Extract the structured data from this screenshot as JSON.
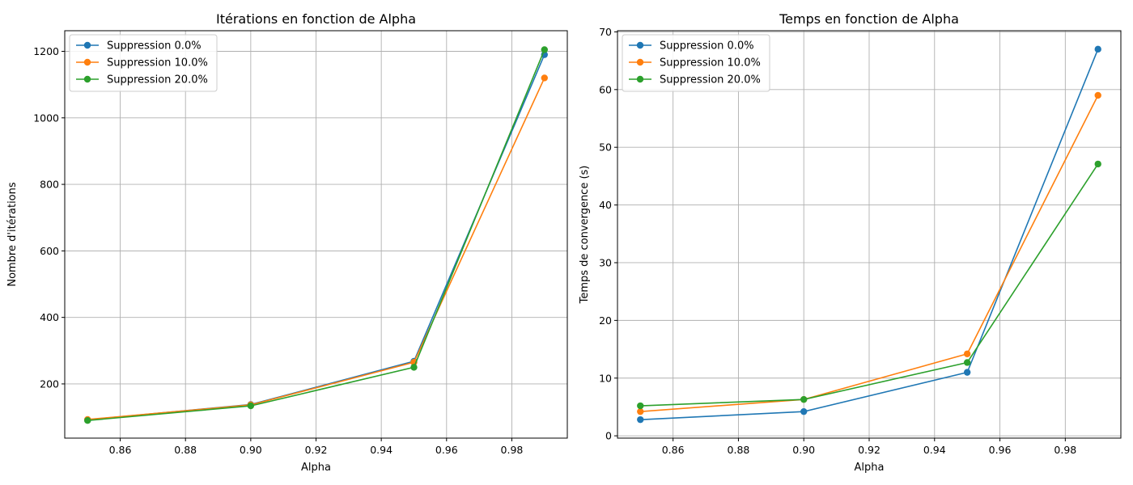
{
  "chart_data": [
    {
      "type": "line",
      "title": "Itérations en fonction de Alpha",
      "xlabel": "Alpha",
      "ylabel": "Nombre d'itérations",
      "x": [
        0.85,
        0.9,
        0.95,
        0.99
      ],
      "xlim": [
        0.843,
        0.997
      ],
      "ylim": [
        37,
        1262
      ],
      "xticks": [
        0.86,
        0.88,
        0.9,
        0.92,
        0.94,
        0.96,
        0.98
      ],
      "xtick_labels": [
        "0.86",
        "0.88",
        "0.90",
        "0.92",
        "0.94",
        "0.96",
        "0.98"
      ],
      "yticks": [
        200,
        400,
        600,
        800,
        1000,
        1200
      ],
      "ytick_labels": [
        "200",
        "400",
        "600",
        "800",
        "1000",
        "1200"
      ],
      "grid": true,
      "legend": "upper left",
      "series": [
        {
          "name": "Suppression 0.0%",
          "color": "#1f77b4",
          "values": [
            92,
            138,
            268,
            1190
          ]
        },
        {
          "name": "Suppression 10.0%",
          "color": "#ff7f0e",
          "values": [
            93,
            137,
            265,
            1120
          ]
        },
        {
          "name": "Suppression 20.0%",
          "color": "#2ca02c",
          "values": [
            90,
            134,
            250,
            1205
          ]
        }
      ]
    },
    {
      "type": "line",
      "title": "Temps en fonction de Alpha",
      "xlabel": "Alpha",
      "ylabel": "Temps de convergence (s)",
      "x": [
        0.85,
        0.9,
        0.95,
        0.99
      ],
      "xlim": [
        0.843,
        0.997
      ],
      "ylim": [
        -0.4,
        70.2
      ],
      "xticks": [
        0.86,
        0.88,
        0.9,
        0.92,
        0.94,
        0.96,
        0.98
      ],
      "xtick_labels": [
        "0.86",
        "0.88",
        "0.90",
        "0.92",
        "0.94",
        "0.96",
        "0.98"
      ],
      "yticks": [
        0,
        10,
        20,
        30,
        40,
        50,
        60,
        70
      ],
      "ytick_labels": [
        "0",
        "10",
        "20",
        "30",
        "40",
        "50",
        "60",
        "70"
      ],
      "grid": true,
      "legend": "upper left",
      "series": [
        {
          "name": "Suppression 0.0%",
          "color": "#1f77b4",
          "values": [
            2.8,
            4.2,
            11.0,
            67.0
          ]
        },
        {
          "name": "Suppression 10.0%",
          "color": "#ff7f0e",
          "values": [
            4.2,
            6.3,
            14.2,
            59.0
          ]
        },
        {
          "name": "Suppression 20.0%",
          "color": "#2ca02c",
          "values": [
            5.2,
            6.3,
            12.7,
            47.1
          ]
        }
      ]
    }
  ]
}
